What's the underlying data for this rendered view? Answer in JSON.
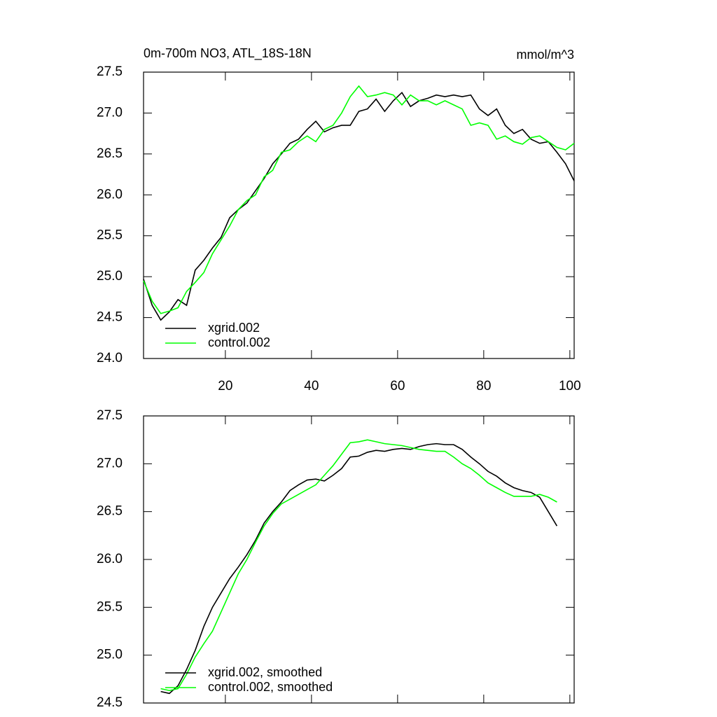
{
  "chart_data": [
    {
      "type": "line",
      "title": "0m-700m NO3, ATL_18S-18N",
      "units": "mmol/m^3",
      "x": [
        1,
        3,
        5,
        7,
        9,
        11,
        13,
        15,
        17,
        19,
        21,
        23,
        25,
        27,
        29,
        31,
        33,
        35,
        37,
        39,
        41,
        43,
        45,
        47,
        49,
        51,
        53,
        55,
        57,
        59,
        61,
        63,
        65,
        67,
        69,
        71,
        73,
        75,
        77,
        79,
        81,
        83,
        85,
        87,
        89,
        91,
        93,
        95,
        97,
        99,
        101
      ],
      "series": [
        {
          "name": "xgrid.002",
          "color": "#000000",
          "values": [
            24.97,
            24.65,
            24.47,
            24.57,
            24.72,
            24.65,
            25.08,
            25.2,
            25.35,
            25.48,
            25.72,
            25.82,
            25.9,
            26.05,
            26.2,
            26.38,
            26.5,
            26.63,
            26.68,
            26.8,
            26.9,
            26.77,
            26.82,
            26.85,
            26.85,
            27.02,
            27.05,
            27.17,
            27.02,
            27.15,
            27.25,
            27.08,
            27.15,
            27.18,
            27.22,
            27.2,
            27.22,
            27.2,
            27.22,
            27.05,
            26.97,
            27.05,
            26.85,
            26.75,
            26.8,
            26.68,
            26.63,
            26.65,
            26.52,
            26.38,
            26.17
          ]
        },
        {
          "name": "control.002",
          "color": "#00ff00",
          "values": [
            24.95,
            24.7,
            24.55,
            24.58,
            24.62,
            24.82,
            24.93,
            25.05,
            25.28,
            25.45,
            25.62,
            25.82,
            25.93,
            26.0,
            26.22,
            26.3,
            26.52,
            26.55,
            26.65,
            26.72,
            26.65,
            26.8,
            26.85,
            27.0,
            27.2,
            27.33,
            27.2,
            27.22,
            27.25,
            27.22,
            27.1,
            27.22,
            27.15,
            27.15,
            27.1,
            27.15,
            27.1,
            27.05,
            26.85,
            26.88,
            26.85,
            26.68,
            26.72,
            26.65,
            26.62,
            26.7,
            26.72,
            26.65,
            26.58,
            26.55,
            26.63
          ]
        }
      ],
      "xlim": [
        1,
        101
      ],
      "xticks": [
        20,
        40,
        60,
        80,
        100
      ],
      "ylim": [
        24,
        27.5
      ],
      "yticks": [
        {
          "value": 24,
          "label": "24.0"
        },
        24.5,
        {
          "value": 25,
          "label": "25.0"
        },
        25.5,
        {
          "value": 26,
          "label": "26.0"
        },
        26.5,
        {
          "value": 27,
          "label": "27.0"
        },
        27.5
      ],
      "legend": "lower left"
    },
    {
      "type": "line",
      "x": [
        5,
        7,
        9,
        11,
        13,
        15,
        17,
        19,
        21,
        23,
        25,
        27,
        29,
        31,
        33,
        35,
        37,
        39,
        41,
        43,
        45,
        47,
        49,
        51,
        53,
        55,
        57,
        59,
        61,
        63,
        65,
        67,
        69,
        71,
        73,
        75,
        77,
        79,
        81,
        83,
        85,
        87,
        89,
        91,
        93,
        95,
        97
      ],
      "series": [
        {
          "name": "xgrid.002, smoothed",
          "color": "#000000",
          "values": [
            24.62,
            24.6,
            24.68,
            24.85,
            25.05,
            25.3,
            25.5,
            25.65,
            25.8,
            25.92,
            26.05,
            26.2,
            26.38,
            26.5,
            26.6,
            26.72,
            26.78,
            26.83,
            26.84,
            26.82,
            26.88,
            26.95,
            27.07,
            27.08,
            27.12,
            27.14,
            27.13,
            27.15,
            27.16,
            27.15,
            27.18,
            27.2,
            27.21,
            27.2,
            27.2,
            27.15,
            27.07,
            27.0,
            26.92,
            26.87,
            26.8,
            26.75,
            26.72,
            26.7,
            26.65,
            26.5,
            26.35
          ]
        },
        {
          "name": "control.002, smoothed",
          "color": "#00ff00",
          "values": [
            24.65,
            24.63,
            24.65,
            24.8,
            24.98,
            25.12,
            25.25,
            25.45,
            25.65,
            25.85,
            26.0,
            26.18,
            26.35,
            26.48,
            26.58,
            26.63,
            26.68,
            26.73,
            26.78,
            26.88,
            26.98,
            27.1,
            27.22,
            27.23,
            27.25,
            27.23,
            27.21,
            27.2,
            27.19,
            27.17,
            27.15,
            27.14,
            27.13,
            27.13,
            27.07,
            27.0,
            26.95,
            26.88,
            26.8,
            26.75,
            26.7,
            26.66,
            26.66,
            26.66,
            26.68,
            26.65,
            26.6
          ]
        }
      ],
      "xlim": [
        1,
        101
      ],
      "ylim": [
        24.5,
        27.5
      ],
      "yticks": [
        24.5,
        {
          "value": 25,
          "label": "25.0"
        },
        25.5,
        {
          "value": 26,
          "label": "26.0"
        },
        26.5,
        {
          "value": 27,
          "label": "27.0"
        },
        27.5
      ],
      "legend": "lower left"
    }
  ]
}
